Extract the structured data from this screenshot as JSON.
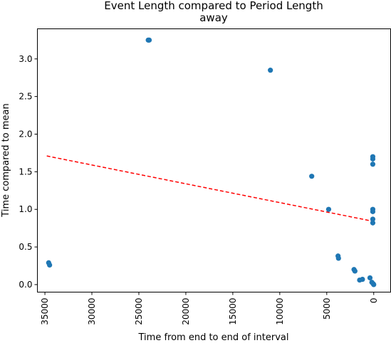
{
  "chart_data": {
    "type": "scatter",
    "title": "Event Length compared to Period Length",
    "title_line2": "away",
    "xlabel": "Time from end to end of interval",
    "ylabel": "Time compared to mean",
    "x_inverted": true,
    "xlim": [
      35800,
      -1800
    ],
    "ylim": [
      -0.1,
      3.4
    ],
    "xticks": [
      35000,
      30000,
      25000,
      20000,
      15000,
      10000,
      5000,
      0
    ],
    "xtick_labels": [
      "35000",
      "30000",
      "25000",
      "20000",
      "15000",
      "10000",
      "5000",
      "0"
    ],
    "yticks": [
      0.0,
      0.5,
      1.0,
      1.5,
      2.0,
      2.5,
      3.0
    ],
    "ytick_labels": [
      "0.0",
      "0.5",
      "1.0",
      "1.5",
      "2.0",
      "2.5",
      "3.0"
    ],
    "grid": false,
    "point_color": "#1f77b4",
    "trend_color": "#ff0000",
    "points": [
      {
        "x": 34600,
        "y": 0.29
      },
      {
        "x": 34500,
        "y": 0.26
      },
      {
        "x": 24000,
        "y": 3.25
      },
      {
        "x": 23900,
        "y": 3.25
      },
      {
        "x": 11000,
        "y": 2.85
      },
      {
        "x": 6600,
        "y": 1.44
      },
      {
        "x": 4800,
        "y": 1.0
      },
      {
        "x": 3800,
        "y": 0.38
      },
      {
        "x": 3750,
        "y": 0.35
      },
      {
        "x": 2100,
        "y": 0.2
      },
      {
        "x": 2000,
        "y": 0.18
      },
      {
        "x": 1500,
        "y": 0.06
      },
      {
        "x": 1200,
        "y": 0.07
      },
      {
        "x": 400,
        "y": 0.09
      },
      {
        "x": 200,
        "y": 0.03
      },
      {
        "x": 100,
        "y": 1.7
      },
      {
        "x": 100,
        "y": 1.67
      },
      {
        "x": 100,
        "y": 1.6
      },
      {
        "x": 100,
        "y": 1.0
      },
      {
        "x": 100,
        "y": 0.97
      },
      {
        "x": 100,
        "y": 0.87
      },
      {
        "x": 100,
        "y": 0.82
      },
      {
        "x": 50,
        "y": 0.01
      },
      {
        "x": 0,
        "y": 0.0
      }
    ],
    "trend_line": {
      "x": [
        34800,
        0
      ],
      "y": [
        1.71,
        0.84
      ]
    }
  }
}
